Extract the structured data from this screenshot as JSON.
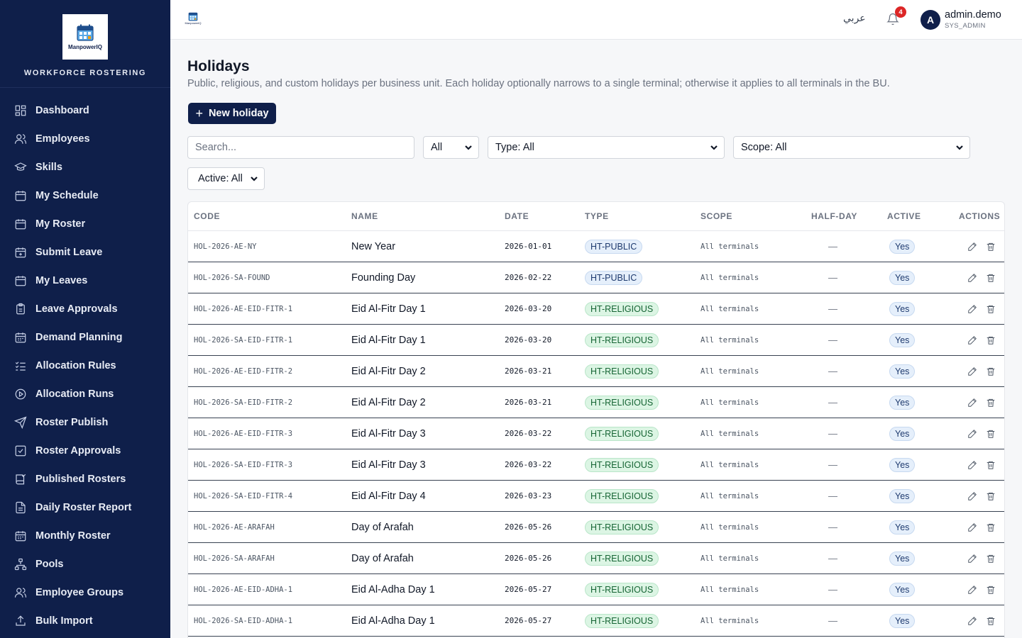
{
  "sidebar": {
    "logo_text": "ManpowerIQ",
    "brand_title": "WORKFORCE ROSTERING",
    "items": [
      {
        "label": "Dashboard",
        "icon": "dashboard-icon"
      },
      {
        "label": "Employees",
        "icon": "users-icon"
      },
      {
        "label": "Skills",
        "icon": "graduation-cap-icon"
      },
      {
        "label": "My Schedule",
        "icon": "calendar-icon"
      },
      {
        "label": "My Roster",
        "icon": "calendar-icon"
      },
      {
        "label": "Submit Leave",
        "icon": "calendar-plus-icon"
      },
      {
        "label": "My Leaves",
        "icon": "calendar-icon"
      },
      {
        "label": "Leave Approvals",
        "icon": "clipboard-icon"
      },
      {
        "label": "Demand Planning",
        "icon": "calendar-grid-icon"
      },
      {
        "label": "Allocation Rules",
        "icon": "list-check-icon"
      },
      {
        "label": "Allocation Runs",
        "icon": "play-circle-icon"
      },
      {
        "label": "Roster Publish",
        "icon": "send-icon"
      },
      {
        "label": "Roster Approvals",
        "icon": "check-square-icon"
      },
      {
        "label": "Published Rosters",
        "icon": "book-check-icon"
      },
      {
        "label": "Daily Roster Report",
        "icon": "file-text-icon"
      },
      {
        "label": "Monthly Roster",
        "icon": "calendar-grid-icon"
      },
      {
        "label": "Pools",
        "icon": "network-icon"
      },
      {
        "label": "Employee Groups",
        "icon": "users-icon"
      },
      {
        "label": "Bulk Import",
        "icon": "upload-icon"
      }
    ]
  },
  "topbar": {
    "mini_logo_text": "ManpowerIQ",
    "language_toggle": "عربي",
    "notification_count": "4",
    "avatar_initial": "A",
    "user_name": "admin.demo",
    "user_role": "SYS_ADMIN"
  },
  "page": {
    "title": "Holidays",
    "subtitle": "Public, religious, and custom holidays per business unit. Each holiday optionally narrows to a single terminal; otherwise it applies to all terminals in the BU.",
    "new_button": "New holiday"
  },
  "filters": {
    "search_placeholder": "Search...",
    "bu_filter": "All",
    "type_filter": "Type: All",
    "scope_filter": "Scope: All",
    "active_filter": "Active: All"
  },
  "table": {
    "columns": [
      "CODE",
      "NAME",
      "DATE",
      "TYPE",
      "SCOPE",
      "HALF-DAY",
      "ACTIVE",
      "ACTIONS"
    ],
    "rows": [
      {
        "code": "HOL-2026-AE-NY",
        "name": "New Year",
        "date": "2026-01-01",
        "type": "HT-PUBLIC",
        "scope": "All terminals",
        "half_day": "—",
        "active": "Yes"
      },
      {
        "code": "HOL-2026-SA-FOUND",
        "name": "Founding Day",
        "date": "2026-02-22",
        "type": "HT-PUBLIC",
        "scope": "All terminals",
        "half_day": "—",
        "active": "Yes"
      },
      {
        "code": "HOL-2026-AE-EID-FITR-1",
        "name": "Eid Al-Fitr Day 1",
        "date": "2026-03-20",
        "type": "HT-RELIGIOUS",
        "scope": "All terminals",
        "half_day": "—",
        "active": "Yes"
      },
      {
        "code": "HOL-2026-SA-EID-FITR-1",
        "name": "Eid Al-Fitr Day 1",
        "date": "2026-03-20",
        "type": "HT-RELIGIOUS",
        "scope": "All terminals",
        "half_day": "—",
        "active": "Yes"
      },
      {
        "code": "HOL-2026-AE-EID-FITR-2",
        "name": "Eid Al-Fitr Day 2",
        "date": "2026-03-21",
        "type": "HT-RELIGIOUS",
        "scope": "All terminals",
        "half_day": "—",
        "active": "Yes"
      },
      {
        "code": "HOL-2026-SA-EID-FITR-2",
        "name": "Eid Al-Fitr Day 2",
        "date": "2026-03-21",
        "type": "HT-RELIGIOUS",
        "scope": "All terminals",
        "half_day": "—",
        "active": "Yes"
      },
      {
        "code": "HOL-2026-AE-EID-FITR-3",
        "name": "Eid Al-Fitr Day 3",
        "date": "2026-03-22",
        "type": "HT-RELIGIOUS",
        "scope": "All terminals",
        "half_day": "—",
        "active": "Yes"
      },
      {
        "code": "HOL-2026-SA-EID-FITR-3",
        "name": "Eid Al-Fitr Day 3",
        "date": "2026-03-22",
        "type": "HT-RELIGIOUS",
        "scope": "All terminals",
        "half_day": "—",
        "active": "Yes"
      },
      {
        "code": "HOL-2026-SA-EID-FITR-4",
        "name": "Eid Al-Fitr Day 4",
        "date": "2026-03-23",
        "type": "HT-RELIGIOUS",
        "scope": "All terminals",
        "half_day": "—",
        "active": "Yes"
      },
      {
        "code": "HOL-2026-AE-ARAFAH",
        "name": "Day of Arafah",
        "date": "2026-05-26",
        "type": "HT-RELIGIOUS",
        "scope": "All terminals",
        "half_day": "—",
        "active": "Yes"
      },
      {
        "code": "HOL-2026-SA-ARAFAH",
        "name": "Day of Arafah",
        "date": "2026-05-26",
        "type": "HT-RELIGIOUS",
        "scope": "All terminals",
        "half_day": "—",
        "active": "Yes"
      },
      {
        "code": "HOL-2026-AE-EID-ADHA-1",
        "name": "Eid Al-Adha Day 1",
        "date": "2026-05-27",
        "type": "HT-RELIGIOUS",
        "scope": "All terminals",
        "half_day": "—",
        "active": "Yes"
      },
      {
        "code": "HOL-2026-SA-EID-ADHA-1",
        "name": "Eid Al-Adha Day 1",
        "date": "2026-05-27",
        "type": "HT-RELIGIOUS",
        "scope": "All terminals",
        "half_day": "—",
        "active": "Yes"
      }
    ]
  },
  "colors": {
    "sidebar_bg": "#0f1f4a",
    "primary": "#0f1f4a",
    "badge": "#dc2626",
    "public_pill": "#e5effb",
    "religious_pill": "#dcf5e4"
  }
}
